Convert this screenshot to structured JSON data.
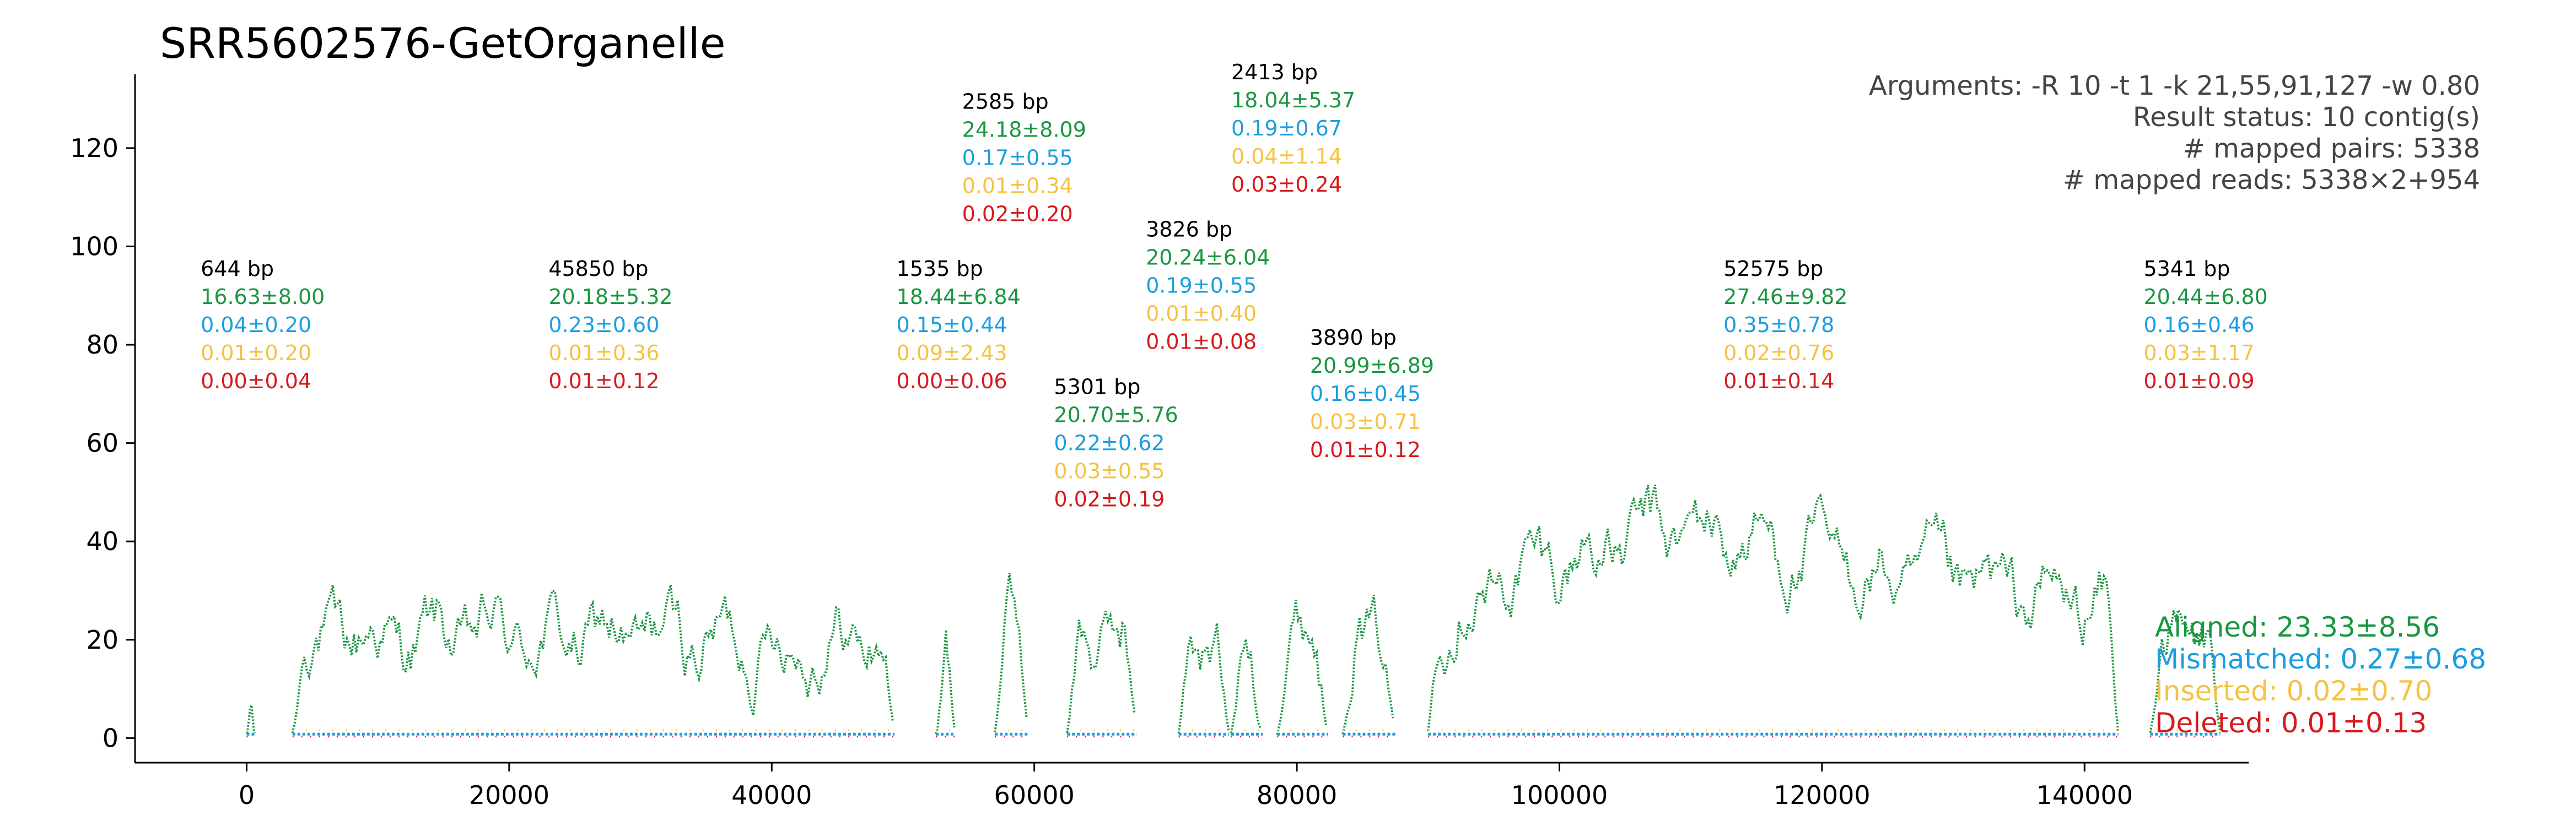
{
  "chart_data": {
    "type": "scatter",
    "title": "SRR5602576-GetOrganelle",
    "xlabel": "",
    "ylabel": "",
    "xlim": [
      -8500,
      152500
    ],
    "ylim": [
      -5,
      135
    ],
    "xticks": [
      {
        "value": 0,
        "label": "0"
      },
      {
        "value": 20000,
        "label": "20000"
      },
      {
        "value": 40000,
        "label": "40000"
      },
      {
        "value": 60000,
        "label": "60000"
      },
      {
        "value": 80000,
        "label": "80000"
      },
      {
        "value": 100000,
        "label": "100000"
      },
      {
        "value": 120000,
        "label": "120000"
      },
      {
        "value": 140000,
        "label": "140000"
      }
    ],
    "yticks": [
      {
        "value": 0,
        "label": "0"
      },
      {
        "value": 20,
        "label": "20"
      },
      {
        "value": 40,
        "label": "40"
      },
      {
        "value": 60,
        "label": "60"
      },
      {
        "value": 80,
        "label": "80"
      },
      {
        "value": 100,
        "label": "100"
      },
      {
        "value": 120,
        "label": "120"
      }
    ],
    "colors": {
      "aligned": "#1a9641",
      "mismatched": "#1a9ee0",
      "inserted": "#f5c242",
      "deleted": "#d7191c",
      "label": "#000000",
      "info": "#444444"
    },
    "info_lines": [
      "Arguments: -R 10 -t 1 -k 21,55,91,127 -w 0.80",
      "Result status: 10 contig(s)",
      "# mapped pairs: 5338",
      "# mapped reads: 5338×2+954"
    ],
    "legend": {
      "placement": "right",
      "entries": [
        {
          "key": "aligned",
          "text": "Aligned: 23.33±8.56"
        },
        {
          "key": "mismatched",
          "text": "Mismatched: 0.27±0.68"
        },
        {
          "key": "inserted",
          "text": "Inserted: 0.02±0.70"
        },
        {
          "key": "deleted",
          "text": "Deleted: 0.01±0.13"
        }
      ]
    },
    "contigs": [
      {
        "start": 0,
        "end": 644,
        "mean": 16.6,
        "label": "644 bp",
        "aligned": "16.63±8.00",
        "mismatched": "0.04±0.20",
        "inserted": "0.01±0.20",
        "deleted": "0.00±0.04",
        "label_x": -3500,
        "label_y": 94
      },
      {
        "start": 3500,
        "end": 49350,
        "mean": 20.2,
        "label": "45850 bp",
        "aligned": "20.18±5.32",
        "mismatched": "0.23±0.60",
        "inserted": "0.01±0.36",
        "deleted": "0.01±0.12",
        "label_x": 23000,
        "label_y": 94
      },
      {
        "start": 52500,
        "end": 54035,
        "mean": 18.4,
        "label": "1535 bp",
        "aligned": "18.44±6.84",
        "mismatched": "0.15±0.44",
        "inserted": "0.09±2.43",
        "deleted": "0.00±0.06",
        "label_x": 49500,
        "label_y": 94
      },
      {
        "start": 57000,
        "end": 59585,
        "mean": 24.2,
        "label": "2585 bp",
        "aligned": "24.18±8.09",
        "mismatched": "0.17±0.55",
        "inserted": "0.01±0.34",
        "deleted": "0.02±0.20",
        "label_x": 54500,
        "label_y": 128
      },
      {
        "start": 62500,
        "end": 67801,
        "mean": 20.7,
        "label": "5301 bp",
        "aligned": "20.70±5.76",
        "mismatched": "0.22±0.62",
        "inserted": "0.03±0.55",
        "deleted": "0.02±0.19",
        "label_x": 61500,
        "label_y": 70
      },
      {
        "start": 71000,
        "end": 74826,
        "mean": 20.2,
        "label": "3826 bp",
        "aligned": "20.24±6.04",
        "mismatched": "0.19±0.55",
        "inserted": "0.01±0.40",
        "deleted": "0.01±0.08",
        "label_x": 68500,
        "label_y": 102
      },
      {
        "start": 75000,
        "end": 77413,
        "mean": 18.0,
        "label": "2413 bp",
        "aligned": "18.04±5.37",
        "mismatched": "0.19±0.67",
        "inserted": "0.04±1.14",
        "deleted": "0.03±0.24",
        "label_x": 75000,
        "label_y": 134
      },
      {
        "start": 78500,
        "end": 82390,
        "mean": 21.0,
        "label": "3890 bp",
        "aligned": "20.99±6.89",
        "mismatched": "0.16±0.45",
        "inserted": "0.03±0.71",
        "deleted": "0.01±0.12",
        "label_x": 81000,
        "label_y": 80
      },
      {
        "start": 83500,
        "end": 87500,
        "mean": 21.0,
        "label": "",
        "aligned": "",
        "mismatched": "",
        "inserted": "",
        "deleted": ""
      },
      {
        "start": 90000,
        "end": 142575,
        "mean": 27.5,
        "label": "52575 bp",
        "aligned": "27.46±9.82",
        "mismatched": "0.35±0.78",
        "inserted": "0.02±0.76",
        "deleted": "0.01±0.14",
        "label_x": 112500,
        "label_y": 94
      },
      {
        "start": 145000,
        "end": 150341,
        "mean": 20.4,
        "label": "5341 bp",
        "aligned": "20.44±6.80",
        "mismatched": "0.16±0.46",
        "inserted": "0.03±1.17",
        "deleted": "0.01±0.09",
        "label_x": 144500,
        "label_y": 94
      }
    ]
  }
}
